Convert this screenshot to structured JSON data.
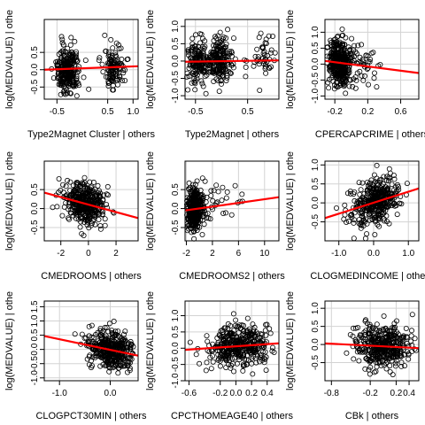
{
  "figure": {
    "ylabel": "log(MEDVALUE) | othe",
    "colors": {
      "points": "#000000",
      "fit_line": "#ff0000",
      "grid": "#d3d3d3",
      "frame": "#000000"
    }
  },
  "chart_data": [
    {
      "type": "scatter",
      "xlabel": "Type2Magnet Cluster | others",
      "xlim": [
        -0.75,
        1.1
      ],
      "ylim": [
        -0.85,
        1.45
      ],
      "xticks": [
        -0.5,
        0.5,
        1.0
      ],
      "xtick_labels": [
        "-0.5",
        "0.5",
        "1.0"
      ],
      "yticks": [
        -0.5,
        0.0,
        0.5
      ],
      "ytick_labels": [
        "-0.5",
        "0.0",
        "0.5"
      ],
      "grid": true,
      "n_points": 380,
      "point_seed": 11,
      "x_clusters": [
        {
          "center": -0.3,
          "spread": 0.12,
          "weight": 0.7
        },
        {
          "center": 0.62,
          "spread": 0.1,
          "weight": 0.3
        }
      ],
      "y_spread": 0.32,
      "fit": {
        "x": [
          -0.75,
          1.1
        ],
        "y": [
          0.0,
          0.1
        ]
      }
    },
    {
      "type": "scatter",
      "xlabel": "Type2Magnet | others",
      "xlim": [
        -0.7,
        1.1
      ],
      "ylim": [
        -1.1,
        1.2
      ],
      "xticks": [
        -0.5,
        0.5
      ],
      "xtick_labels": [
        "-0.5",
        "0.5"
      ],
      "yticks": [
        -1.0,
        -0.5,
        0.0,
        0.5,
        1.0
      ],
      "ytick_labels": [
        "-1.0",
        "-0.5",
        "0.0",
        "0.5",
        "1.0"
      ],
      "grid": true,
      "n_points": 380,
      "point_seed": 23,
      "x_clusters": [
        {
          "center": -0.45,
          "spread": 0.12,
          "weight": 0.35
        },
        {
          "center": -0.05,
          "spread": 0.15,
          "weight": 0.5
        },
        {
          "center": 0.8,
          "spread": 0.12,
          "weight": 0.15
        }
      ],
      "y_spread": 0.32,
      "fit": {
        "x": [
          -0.7,
          1.1
        ],
        "y": [
          -0.02,
          0.02
        ]
      }
    },
    {
      "type": "scatter",
      "xlabel": "CPERCAPCRIME | others",
      "xlim": [
        -0.32,
        0.82
      ],
      "ylim": [
        -1.1,
        1.4
      ],
      "xticks": [
        -0.2,
        0.2,
        0.6
      ],
      "xtick_labels": [
        "-0.2",
        "0.2",
        "0.6"
      ],
      "yticks": [
        -1.0,
        -0.5,
        0.0,
        0.5,
        1.0
      ],
      "ytick_labels": [
        "-1.0",
        "-0.5",
        "0.0",
        "0.5",
        "1.0"
      ],
      "grid": true,
      "n_points": 380,
      "point_seed": 37,
      "x_clusters": [
        {
          "center": -0.15,
          "spread": 0.07,
          "weight": 0.85
        },
        {
          "center": 0.1,
          "spread": 0.12,
          "weight": 0.15
        }
      ],
      "y_spread": 0.35,
      "fit": {
        "x": [
          -0.32,
          0.82
        ],
        "y": [
          0.1,
          -0.28
        ]
      }
    },
    {
      "type": "scatter",
      "xlabel": "CMEDROOMS | others",
      "xlim": [
        -3.2,
        3.6
      ],
      "ylim": [
        -0.85,
        1.25
      ],
      "xticks": [
        -2,
        0,
        2
      ],
      "xtick_labels": [
        "-2",
        "0",
        "2"
      ],
      "yticks": [
        -0.5,
        0.0,
        0.5
      ],
      "ytick_labels": [
        "-0.5",
        "0.0",
        "0.5"
      ],
      "grid": true,
      "n_points": 380,
      "point_seed": 41,
      "x_clusters": [
        {
          "center": -0.3,
          "spread": 0.8,
          "weight": 1.0
        }
      ],
      "y_spread": 0.28,
      "fit": {
        "x": [
          -3.2,
          3.6
        ],
        "y": [
          0.42,
          -0.25
        ]
      }
    },
    {
      "type": "scatter",
      "xlabel": "CMEDROOMS2 | others",
      "xlim": [
        -2.2,
        12.2
      ],
      "ylim": [
        -0.85,
        1.25
      ],
      "xticks": [
        -2,
        2,
        6,
        10
      ],
      "xtick_labels": [
        "-2",
        "2",
        "6",
        "10"
      ],
      "yticks": [
        -0.5,
        0.0,
        0.5
      ],
      "ytick_labels": [
        "-0.5",
        "0.0",
        "0.5"
      ],
      "grid": true,
      "n_points": 380,
      "point_seed": 53,
      "x_clusters": [
        {
          "center": -0.8,
          "spread": 0.7,
          "weight": 0.9
        },
        {
          "center": 2.5,
          "spread": 2.0,
          "weight": 0.1
        }
      ],
      "y_spread": 0.3,
      "fit": {
        "x": [
          -2.2,
          12.2
        ],
        "y": [
          -0.05,
          0.3
        ]
      }
    },
    {
      "type": "scatter",
      "xlabel": "CLOGMEDINCOME | others",
      "xlim": [
        -1.4,
        1.3
      ],
      "ylim": [
        -1.0,
        1.1
      ],
      "xticks": [
        -1.0,
        0.0,
        1.0
      ],
      "xtick_labels": [
        "-1.0",
        "0.0",
        "1.0"
      ],
      "yticks": [
        -0.5,
        0.0,
        0.5,
        1.0
      ],
      "ytick_labels": [
        "-0.5",
        "0.0",
        "0.5",
        "1.0"
      ],
      "grid": true,
      "n_points": 380,
      "point_seed": 67,
      "x_clusters": [
        {
          "center": 0.05,
          "spread": 0.35,
          "weight": 1.0
        }
      ],
      "y_spread": 0.28,
      "fit": {
        "x": [
          -1.4,
          1.3
        ],
        "y": [
          -0.4,
          0.38
        ]
      }
    },
    {
      "type": "scatter",
      "xlabel": "CLOGPCT30MIN | others",
      "xlim": [
        -1.3,
        0.55
      ],
      "ylim": [
        -1.1,
        1.7
      ],
      "xticks": [
        -1.0,
        0.0
      ],
      "xtick_labels": [
        "-1.0",
        "0.0"
      ],
      "yticks": [
        -1.0,
        -0.5,
        0.0,
        0.5,
        1.0,
        1.5
      ],
      "ytick_labels": [
        "-1.0",
        "-0.5",
        "0.0",
        "0.5",
        "1.0",
        "1.5"
      ],
      "grid": true,
      "n_points": 380,
      "point_seed": 79,
      "x_clusters": [
        {
          "center": 0.0,
          "spread": 0.22,
          "weight": 1.0
        }
      ],
      "y_spread": 0.32,
      "fit": {
        "x": [
          -1.3,
          0.55
        ],
        "y": [
          0.47,
          -0.22
        ]
      }
    },
    {
      "type": "scatter",
      "xlabel": "CPCTHOMEAGE40 | others",
      "xlim": [
        -0.65,
        0.55
      ],
      "ylim": [
        -1.0,
        1.45
      ],
      "xticks": [
        -0.6,
        -0.2,
        0.0,
        0.2,
        0.4
      ],
      "xtick_labels": [
        "-0.6",
        "-0.2",
        "0.0",
        "0.2",
        "0.4"
      ],
      "yticks": [
        -1.0,
        -0.5,
        0.0,
        0.5,
        1.0
      ],
      "ytick_labels": [
        "-1.0",
        "-0.5",
        "0.0",
        "0.5",
        "1.0"
      ],
      "grid": true,
      "n_points": 380,
      "point_seed": 83,
      "x_clusters": [
        {
          "center": 0.05,
          "spread": 0.2,
          "weight": 1.0
        }
      ],
      "y_spread": 0.32,
      "fit": {
        "x": [
          -0.65,
          0.55
        ],
        "y": [
          -0.05,
          0.15
        ]
      }
    },
    {
      "type": "scatter",
      "xlabel": "CBk | others",
      "xlim": [
        -0.9,
        0.55
      ],
      "ylim": [
        -1.0,
        1.2
      ],
      "xticks": [
        -0.8,
        -0.2,
        0.2,
        0.4
      ],
      "xtick_labels": [
        "-0.8",
        "-0.2",
        "0.2",
        "0.4"
      ],
      "yticks": [
        -0.5,
        0.0,
        0.5,
        1.0
      ],
      "ytick_labels": [
        "-0.5",
        "0.0",
        "0.5",
        "1.0"
      ],
      "grid": true,
      "n_points": 380,
      "point_seed": 97,
      "x_clusters": [
        {
          "center": 0.0,
          "spread": 0.22,
          "weight": 1.0
        }
      ],
      "y_spread": 0.3,
      "fit": {
        "x": [
          -0.9,
          0.55
        ],
        "y": [
          0.03,
          -0.1
        ]
      }
    }
  ]
}
